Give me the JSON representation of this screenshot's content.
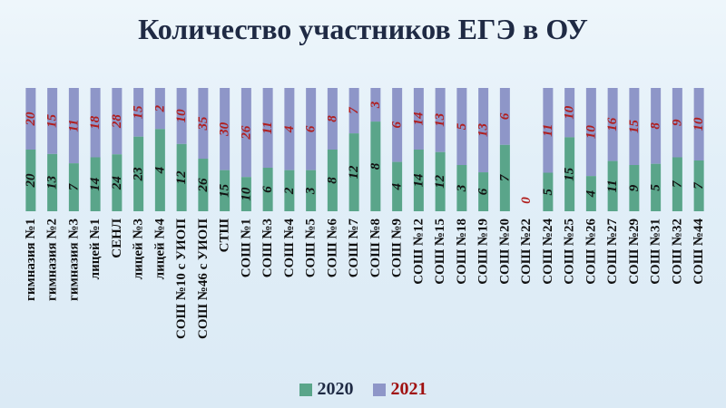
{
  "chart_data": {
    "type": "bar",
    "stacked": "percent",
    "title": "Количество участников ЕГЭ в ОУ",
    "categories": [
      "гимназия №1",
      "гимназия №2",
      "гимназия №3",
      "лицей №1",
      "СЕНЛ",
      "лицей №3",
      "лицей №4",
      "СОШ №10 с УИОП",
      "СОШ №46 с УИОП",
      "СТШ",
      "СОШ №1",
      "СОШ №3",
      "СОШ №4",
      "СОШ №5",
      "СОШ №6",
      "СОШ №7",
      "СОШ №8",
      "СОШ №9",
      "СОШ №12",
      "СОШ №15",
      "СОШ №18",
      "СОШ №19",
      "СОШ №20",
      "СОШ №22",
      "СОШ №24",
      "СОШ №25",
      "СОШ №26",
      "СОШ №27",
      "СОШ №29",
      "СОШ №31",
      "СОШ №32",
      "СОШ №44"
    ],
    "series": [
      {
        "name": "2020",
        "color": "#5aa58a",
        "label_color": "#111111",
        "values": [
          20,
          13,
          7,
          14,
          24,
          23,
          4,
          12,
          26,
          15,
          10,
          6,
          2,
          3,
          8,
          12,
          8,
          4,
          14,
          12,
          3,
          6,
          7,
          0,
          5,
          15,
          4,
          11,
          9,
          5,
          7,
          7
        ]
      },
      {
        "name": "2021",
        "color": "#8e96c8",
        "label_color": "#b01e1e",
        "values": [
          20,
          15,
          11,
          18,
          28,
          15,
          2,
          10,
          35,
          30,
          26,
          11,
          4,
          6,
          8,
          7,
          3,
          6,
          14,
          13,
          5,
          13,
          6,
          0,
          11,
          10,
          10,
          16,
          15,
          8,
          9,
          10
        ]
      }
    ],
    "legend_position": "bottom"
  }
}
